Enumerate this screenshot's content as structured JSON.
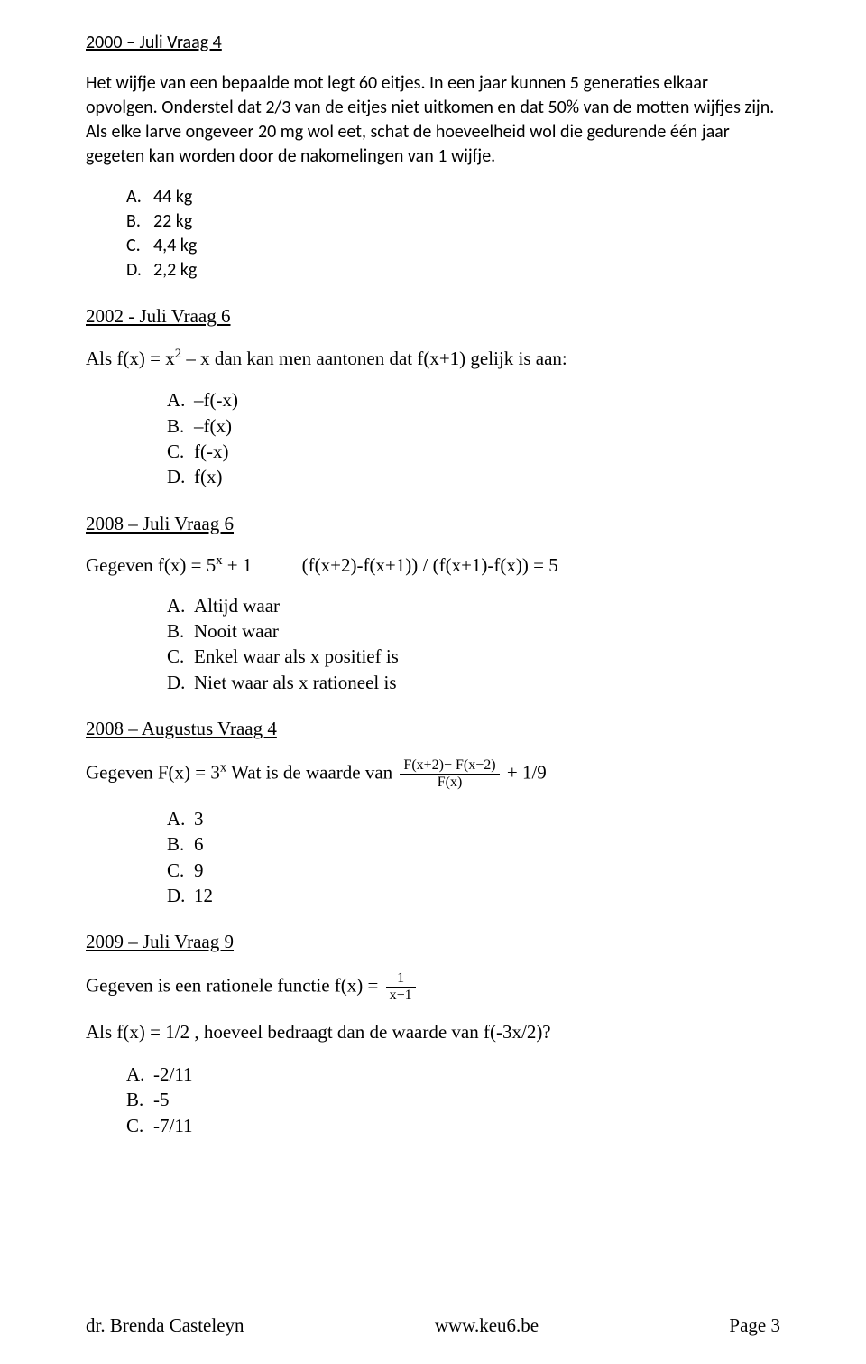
{
  "q1": {
    "title": "2000 – Juli Vraag 4",
    "body": "Het wijfje van een bepaalde mot legt 60 eitjes. In een jaar kunnen 5 generaties elkaar opvolgen. Onderstel dat 2/3 van de eitjes niet uitkomen en dat 50% van de motten wijfjes zijn. Als elke larve ongeveer 20 mg wol eet, schat de hoeveelheid wol die gedurende één jaar gegeten kan worden door de nakomelingen van 1 wijfje.",
    "options": [
      {
        "label": "A.",
        "text": "44 kg"
      },
      {
        "label": "B.",
        "text": "22 kg"
      },
      {
        "label": "C.",
        "text": "4,4 kg"
      },
      {
        "label": "D.",
        "text": "2,2 kg"
      }
    ]
  },
  "q2": {
    "title": "2002 - Juli Vraag 6",
    "body_prefix": "Als f(x) = x",
    "body_exp": "2",
    "body_suffix": " – x dan kan men aantonen dat f(x+1) gelijk is aan:",
    "options": [
      {
        "label": "A.",
        "text": "–f(-x)"
      },
      {
        "label": "B.",
        "text": "–f(x)"
      },
      {
        "label": "C.",
        "text": "f(-x)"
      },
      {
        "label": "D.",
        "text": "f(x)"
      }
    ]
  },
  "q3": {
    "title": "2008 – Juli Vraag 6",
    "given_prefix": "Gegeven f(x) = 5",
    "given_exp": "x",
    "given_mid": " + 1",
    "given_formula": "(f(x+2)-f(x+1)) / (f(x+1)-f(x)) = 5",
    "options": [
      {
        "label": "A.",
        "text": "Altijd waar"
      },
      {
        "label": "B.",
        "text": "Nooit waar"
      },
      {
        "label": "C.",
        "text": "Enkel waar als x positief is"
      },
      {
        "label": "D.",
        "text": "Niet waar als x rationeel is"
      }
    ]
  },
  "q4": {
    "title": "2008 – Augustus Vraag 4",
    "given_prefix": "Gegeven F(x) = 3",
    "given_exp": "x",
    "given_mid": " Wat is de waarde van ",
    "frac_num": "F(x+2)− F(x−2)",
    "frac_den": "F(x)",
    "given_suffix": " + 1/9",
    "options": [
      {
        "label": "A.",
        "text": "3"
      },
      {
        "label": "B.",
        "text": "6"
      },
      {
        "label": "C.",
        "text": "9"
      },
      {
        "label": "D.",
        "text": "12"
      }
    ]
  },
  "q5": {
    "title": "2009 – Juli Vraag 9",
    "given": "Gegeven is een rationele functie f(x) = ",
    "frac_num": "1",
    "frac_den": "x−1",
    "body2": "Als f(x) = 1/2 , hoeveel bedraagt dan de waarde van f(-3x/2)?",
    "options": [
      {
        "label": "A.",
        "text": "-2/11"
      },
      {
        "label": "B.",
        "text": "-5"
      },
      {
        "label": "C.",
        "text": "-7/11"
      }
    ]
  },
  "footer": {
    "left": "dr. Brenda Casteleyn",
    "center": "www.keu6.be",
    "right": "Page 3"
  }
}
